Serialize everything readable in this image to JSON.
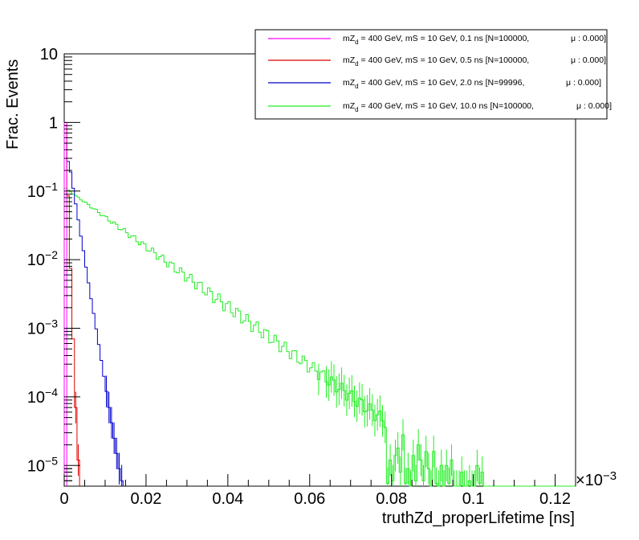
{
  "chart_data": {
    "type": "line",
    "xlabel": "truthZd_properLifetime [ns]",
    "ylabel": "Frac. Events",
    "x_multiplier": "×10",
    "x_multiplier_exp": "−3",
    "xlim": [
      0,
      0.125
    ],
    "ylim": [
      5e-06,
      10
    ],
    "yscale": "log",
    "grid": false,
    "legend_position": "top-right",
    "x_ticks": [
      {
        "value": 0,
        "label": "0"
      },
      {
        "value": 0.02,
        "label": "0.02"
      },
      {
        "value": 0.04,
        "label": "0.04"
      },
      {
        "value": 0.06,
        "label": "0.06"
      },
      {
        "value": 0.08,
        "label": "0.08"
      },
      {
        "value": 0.1,
        "label": "0.1"
      },
      {
        "value": 0.12,
        "label": "0.12"
      }
    ],
    "y_ticks": [
      {
        "value": 1e-05,
        "base": "10",
        "exp": "−5"
      },
      {
        "value": 0.0001,
        "base": "10",
        "exp": "−4"
      },
      {
        "value": 0.001,
        "base": "10",
        "exp": "−3"
      },
      {
        "value": 0.01,
        "base": "10",
        "exp": "−2"
      },
      {
        "value": 0.1,
        "base": "10",
        "exp": "−1"
      },
      {
        "value": 1,
        "base": "1",
        "exp": ""
      },
      {
        "value": 10,
        "base": "10",
        "exp": ""
      }
    ],
    "series": [
      {
        "legend": "mZ_d = 400 GeV, mS = 10 GeV, 0.1 ns [N=100000,     μ: 0.000]",
        "leg_pre": "mZ",
        "leg_sub": "d",
        "leg_post": " = 400 GeV, mS = 10 GeV, 0.1 ns [N=100000,",
        "leg_mu": "μ : 0.000]",
        "color": "#ff00ff",
        "bin_width": 0.000625,
        "values": [
          1.0
        ]
      },
      {
        "legend": "mZ_d = 400 GeV, mS = 10 GeV, 0.5 ns [N=100000,     μ: 0.000]",
        "leg_pre": "mZ",
        "leg_sub": "d",
        "leg_post": " = 400 GeV, mS = 10 GeV, 0.5 ns [N=100000,",
        "leg_mu": "μ : 0.000]",
        "color": "#dd0000",
        "bin_width": 0.000625,
        "values": [
          0.9,
          0.085,
          0.0075,
          0.0007,
          7e-05,
          1.2e-05
        ]
      },
      {
        "legend": "mZ_d = 400 GeV, mS = 10 GeV, 2.0 ns [N=99996,     μ: 0.000]",
        "leg_pre": "mZ",
        "leg_sub": "d",
        "leg_post": " = 400 GeV, mS = 10 GeV, 2.0 ns [N=99996,",
        "leg_mu": "μ : 0.000]",
        "color": "#0000cc",
        "bin_width": 0.000625,
        "values": [
          0.5,
          0.27,
          0.19,
          0.11,
          0.065,
          0.038,
          0.022,
          0.0135,
          0.0078,
          0.0046,
          0.0027,
          0.00165,
          0.00098,
          0.00058,
          0.00034,
          0.0002,
          0.00012,
          7e-05,
          4.2e-05,
          2.5e-05,
          1.5e-05,
          9e-06,
          6e-06
        ]
      },
      {
        "legend": "mZ_d = 400 GeV, mS = 10 GeV, 10.0 ns [N=100000,     μ: 0.000]",
        "leg_pre": "mZ",
        "leg_sub": "d",
        "leg_post": " = 400 GeV, mS = 10 GeV, 10.0 ns [N=100000,",
        "leg_mu": "μ : 0.000]",
        "color": "#22ee22",
        "bin_width": 0.000625,
        "decay_start": 0.11,
        "decay_per_bin": 0.9395,
        "noise_amplitude": 0.22,
        "tail_values": [
          5.5e-06,
          1.2e-05,
          6e-06,
          1.4e-05,
          1.8e-05,
          8e-06,
          2.8e-05,
          5.5e-06,
          9e-06,
          5e-06,
          1.4e-05,
          6e-06,
          2e-05,
          1.2e-05,
          6e-06,
          1.6e-05,
          9e-06,
          5e-06,
          1.6e-05,
          5.5e-06,
          5e-06,
          1e-05,
          5e-06,
          1e-05,
          5.5e-06,
          1.2e-05,
          5e-06,
          5e-06,
          5e-06,
          8e-06,
          5e-06,
          5e-06,
          6e-06,
          5e-06,
          5e-06,
          1e-05,
          5.5e-06,
          8e-06
        ],
        "tail_start_bin": 126
      }
    ]
  }
}
